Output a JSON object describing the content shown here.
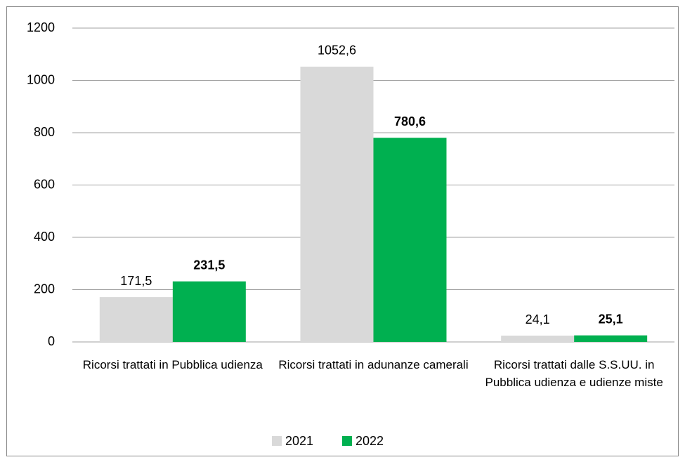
{
  "chart_data": {
    "type": "bar",
    "categories": [
      "Ricorsi trattati in Pubblica udienza",
      "Ricorsi trattati in adunanze camerali",
      "Ricorsi trattati dalle S.S.UU. in Pubblica udienza e udienze miste"
    ],
    "series": [
      {
        "name": "2021",
        "color": "#d9d9d9",
        "values": [
          171.5,
          1052.6,
          24.1
        ],
        "value_labels": [
          "171,5",
          "1052,6",
          "24,1"
        ]
      },
      {
        "name": "2022",
        "color": "#00b050",
        "values": [
          231.5,
          780.6,
          25.1
        ],
        "value_labels": [
          "231,5",
          "780,6",
          "25,1"
        ]
      }
    ],
    "ylim": [
      0,
      1200
    ],
    "yticks": [
      0,
      200,
      400,
      600,
      800,
      1000,
      1200
    ],
    "grid": true,
    "legend": "bottom"
  }
}
